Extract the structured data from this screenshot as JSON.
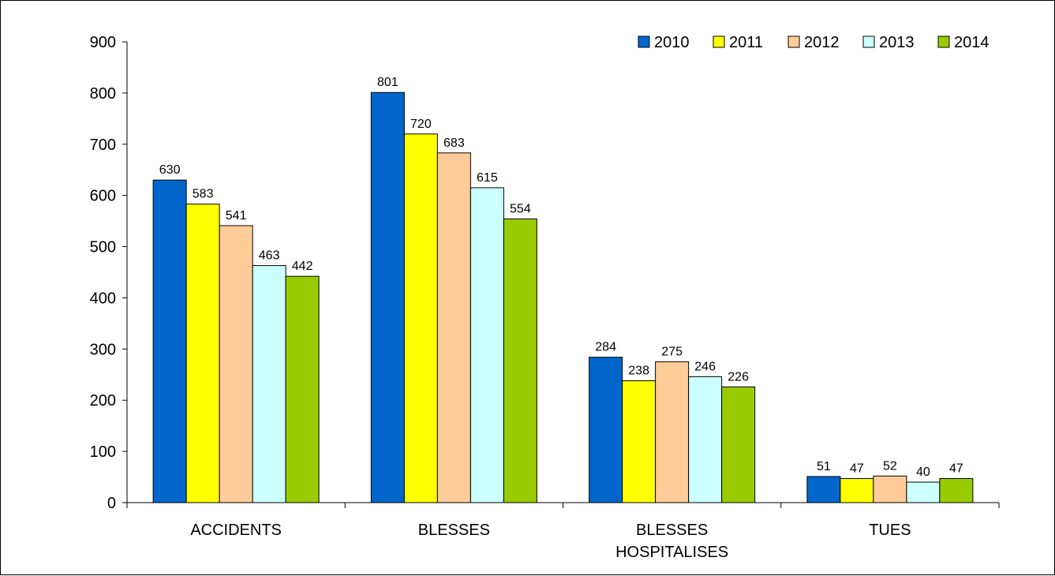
{
  "chart_data": {
    "type": "bar",
    "categories": [
      "ACCIDENTS",
      "BLESSES",
      "BLESSES HOSPITALISES",
      "TUES"
    ],
    "category_lines": [
      [
        "ACCIDENTS"
      ],
      [
        "BLESSES"
      ],
      [
        "BLESSES",
        "HOSPITALISES"
      ],
      [
        "TUES"
      ]
    ],
    "series": [
      {
        "name": "2010",
        "color": "#0066CC",
        "values": [
          630,
          801,
          284,
          51
        ]
      },
      {
        "name": "2011",
        "color": "#FFFF00",
        "values": [
          583,
          720,
          238,
          47
        ]
      },
      {
        "name": "2012",
        "color": "#FFCC99",
        "values": [
          541,
          683,
          275,
          52
        ]
      },
      {
        "name": "2013",
        "color": "#CCFFFF",
        "values": [
          463,
          615,
          246,
          40
        ]
      },
      {
        "name": "2014",
        "color": "#99CC00",
        "values": [
          442,
          554,
          226,
          47
        ]
      }
    ],
    "yticks": [
      "0",
      "100",
      "200",
      "300",
      "400",
      "500",
      "600",
      "700",
      "800",
      "900"
    ],
    "ylim": [
      0,
      900
    ],
    "legend_position": "top-right",
    "data_labels": true,
    "grid": false
  }
}
